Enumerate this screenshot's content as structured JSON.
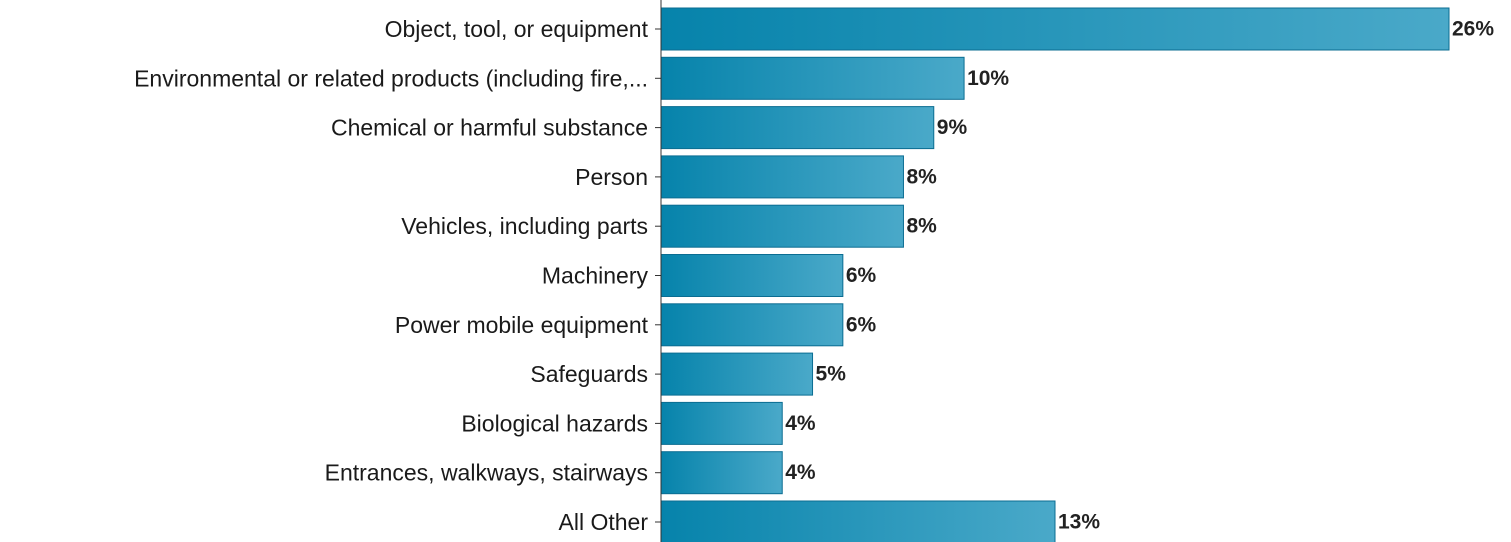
{
  "chart_data": {
    "type": "bar",
    "orientation": "horizontal",
    "title": "",
    "xlabel": "",
    "ylabel": "",
    "categories": [
      "Object, tool, or equipment",
      "Environmental or related products (including fire,...",
      "Chemical or harmful substance",
      "Person",
      "Vehicles, including parts",
      "Machinery",
      "Power mobile equipment",
      "Safeguards",
      "Biological hazards",
      "Entrances, walkways, stairways",
      "All Other"
    ],
    "values": [
      26,
      10,
      9,
      8,
      8,
      6,
      6,
      5,
      4,
      4,
      13
    ],
    "value_labels": [
      "26%",
      "10%",
      "9%",
      "8%",
      "8%",
      "6%",
      "6%",
      "5%",
      "4%",
      "4%",
      "13%"
    ],
    "value_unit": "%",
    "xlim": [
      0,
      26
    ],
    "grid": false,
    "legend": "none",
    "colors": {
      "bar_start": "#0683ab",
      "bar_end": "#4aa9c9",
      "bar_border": "#0b6d92",
      "axis": "#333333",
      "text": "#1a1a1a"
    }
  }
}
